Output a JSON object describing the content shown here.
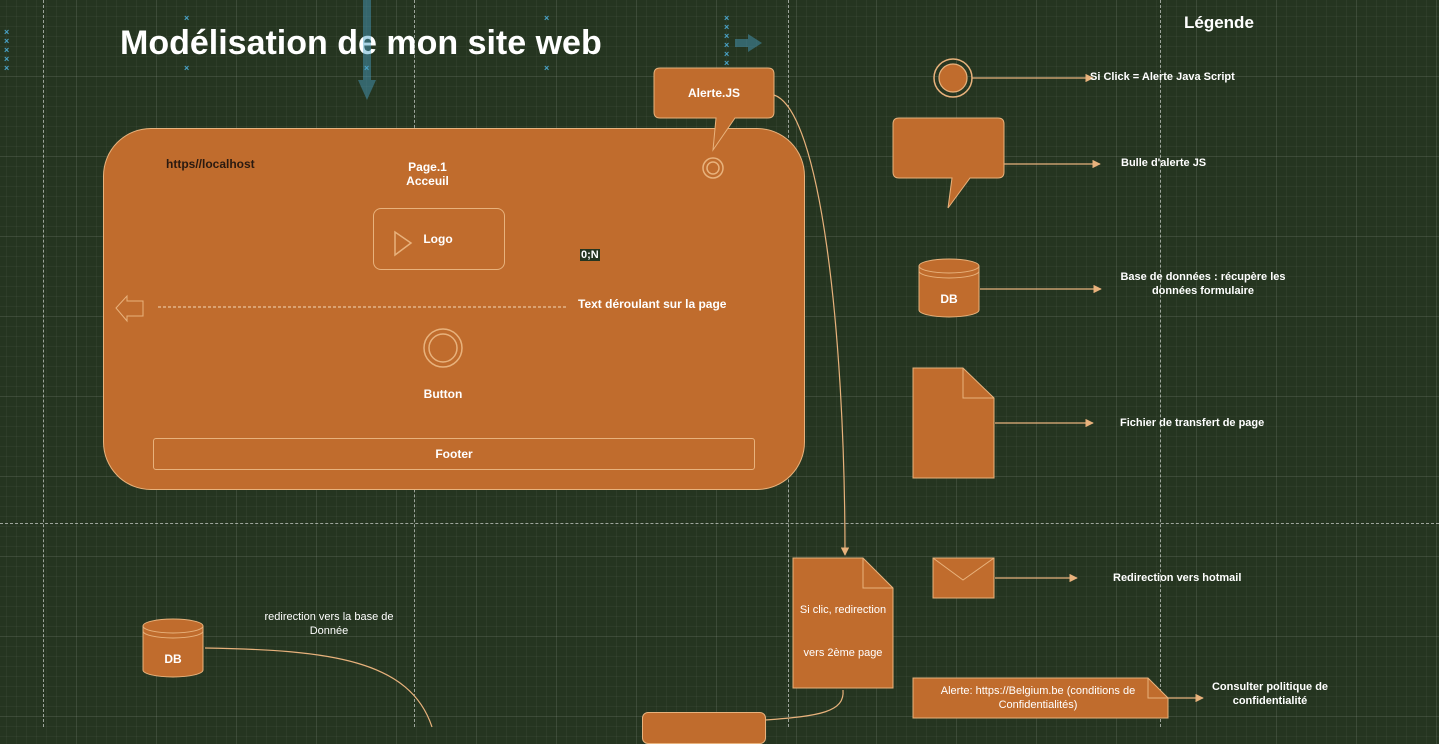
{
  "title": "Modélisation de mon site web",
  "legend_title": "Légende",
  "page": {
    "url": "https//localhost",
    "page_name": "Page.1\nAcceuil",
    "logo": "Logo",
    "scroll_text": "Text déroulant sur la page",
    "button": "Button",
    "footer": "Footer",
    "edge_label": "0;N"
  },
  "alert_bubble": "Alerte.JS",
  "legend": {
    "click": "Si Click = Alerte Java Script",
    "bubble": "Bulle d'alerte JS",
    "db": "Base de données : récupère les données formulaire",
    "db_shape_label": "DB",
    "file": "Fichier de transfert de page",
    "mail": "Redirection vers hotmail",
    "policy": "Consulter politique de confidentialité"
  },
  "redirect_doc": {
    "line1": "Si clic, redirection",
    "line2": "vers 2ème page"
  },
  "bottom_db": {
    "label": "DB",
    "caption": "redirection vers la base de Donnée"
  },
  "alert_note": "Alerte: https://Belgium.be (conditions de Confidentialités)",
  "colors": {
    "background": "#253520",
    "shape_fill": "#c06c2d",
    "shape_stroke": "#e8b27c",
    "connector": "#e8b27c"
  }
}
